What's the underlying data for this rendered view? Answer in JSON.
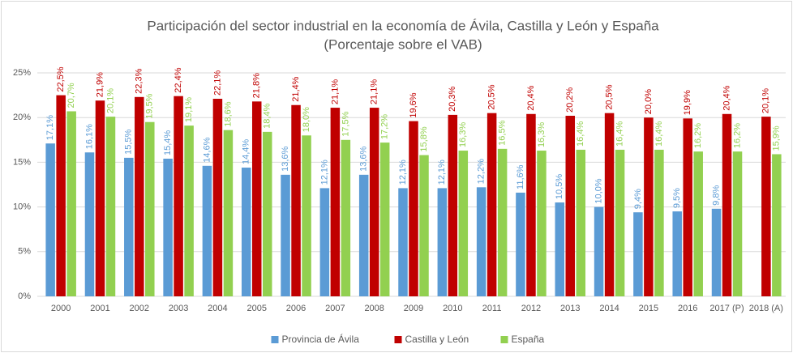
{
  "chart_data": {
    "type": "bar",
    "title": "Participación del sector industrial en la economía de Ávila, Castilla y León y España",
    "subtitle": "(Porcentaje sobre el VAB)",
    "categories": [
      "2000",
      "2001",
      "2002",
      "2003",
      "2004",
      "2005",
      "2006",
      "2007",
      "2008",
      "2009",
      "2010",
      "2011",
      "2012",
      "2013",
      "2014",
      "2015",
      "2016",
      "2017 (P)",
      "2018 (A)"
    ],
    "series": [
      {
        "name": "Provincia de Ávila",
        "color": "#5b9bd5",
        "values": [
          17.1,
          16.1,
          15.5,
          15.4,
          14.6,
          14.4,
          13.6,
          12.1,
          13.6,
          12.1,
          12.1,
          12.2,
          11.6,
          10.5,
          10.0,
          9.4,
          9.5,
          9.8,
          null
        ],
        "value_labels": [
          "17,1%",
          "16,1%",
          "15,5%",
          "15,4%",
          "14,6%",
          "14,4%",
          "13,6%",
          "12,1%",
          "13,6%",
          "12,1%",
          "12,1%",
          "12,2%",
          "11,6%",
          "10,5%",
          "10,0%",
          "9,4%",
          "9,5%",
          "9,8%",
          null
        ]
      },
      {
        "name": "Castilla y León",
        "color": "#c00000",
        "values": [
          22.5,
          21.9,
          22.3,
          22.4,
          22.1,
          21.8,
          21.4,
          21.1,
          21.1,
          19.6,
          20.3,
          20.5,
          20.4,
          20.2,
          20.5,
          20.0,
          19.9,
          20.4,
          20.1
        ],
        "value_labels": [
          "22,5%",
          "21,9%",
          "22,3%",
          "22,4%",
          "22,1%",
          "21,8%",
          "21,4%",
          "21,1%",
          "21,1%",
          "19,6%",
          "20,3%",
          "20,5%",
          "20,4%",
          "20,2%",
          "20,5%",
          "20,0%",
          "19,9%",
          "20,4%",
          "20,1%"
        ]
      },
      {
        "name": "España",
        "color": "#92d050",
        "values": [
          20.7,
          20.1,
          19.5,
          19.1,
          18.6,
          18.4,
          18.0,
          17.5,
          17.2,
          15.8,
          16.3,
          16.5,
          16.3,
          16.4,
          16.4,
          16.4,
          16.2,
          16.2,
          15.9
        ],
        "value_labels": [
          "20,7%",
          "20,1%",
          "19,5%",
          "19,1%",
          "18,6%",
          "18,4%",
          "18,0%",
          "17,5%",
          "17,2%",
          "15,8%",
          "16,3%",
          "16,5%",
          "16,3%",
          "16,4%",
          "16,4%",
          "16,4%",
          "16,2%",
          "16,2%",
          "15,9%"
        ]
      }
    ],
    "ylim": [
      0,
      25
    ],
    "yticks": [
      {
        "value": 0,
        "label": "0%"
      },
      {
        "value": 5,
        "label": "5%"
      },
      {
        "value": 10,
        "label": "10%"
      },
      {
        "value": 15,
        "label": "15%"
      },
      {
        "value": 20,
        "label": "20%"
      },
      {
        "value": 25,
        "label": "25%"
      }
    ],
    "grid": true,
    "legend": "bottom"
  }
}
